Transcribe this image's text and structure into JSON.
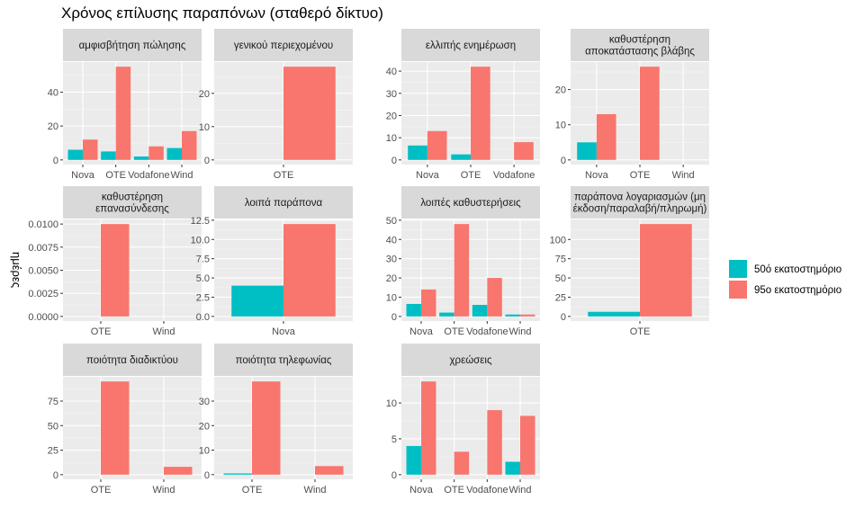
{
  "chart_data": {
    "type": "bar",
    "title": "Χρόνος επίλυσης παραπόνων (σταθερό δίκτυο)",
    "ylabel": "ημέρες",
    "xlabel": "",
    "legend_placement": "right",
    "series_meta": [
      {
        "name": "50ό εκατοστημόριο",
        "color": "#00BFC4"
      },
      {
        "name": "95ο εκατοστημόριο",
        "color": "#F8766D"
      }
    ],
    "facets": [
      {
        "title": [
          "αμφισβήτηση πώλησης"
        ],
        "categories": [
          "Nova",
          "OTE",
          "Vodafone",
          "Wind"
        ],
        "p50": [
          6,
          5,
          2,
          7
        ],
        "p95": [
          12,
          55,
          8,
          17
        ],
        "ylim": [
          -2.75,
          57.75
        ],
        "yticks": [
          0,
          20,
          40
        ]
      },
      {
        "title": [
          "γενικού περιεχομένου"
        ],
        "categories": [
          "OTE"
        ],
        "p50": [
          null
        ],
        "p95": [
          28
        ],
        "ylim": [
          -1.4,
          29.4
        ],
        "yticks": [
          0,
          10,
          20
        ]
      },
      {
        "title": [
          "ελλιπής ενημέρωση"
        ],
        "categories": [
          "Nova",
          "OTE",
          "Vodafone"
        ],
        "p50": [
          6.5,
          2.5,
          null
        ],
        "p95": [
          13,
          42,
          8
        ],
        "ylim": [
          -2.1,
          44.1
        ],
        "yticks": [
          0,
          10,
          20,
          30,
          40
        ]
      },
      {
        "title": [
          "καθυστέρηση",
          "αποκατάστασης βλάβης"
        ],
        "categories": [
          "Nova",
          "OTE",
          "Wind"
        ],
        "p50": [
          5,
          null,
          null
        ],
        "p95": [
          13,
          26.5,
          null
        ],
        "ylim": [
          -1.325,
          27.825
        ],
        "yticks": [
          0,
          10,
          20
        ]
      },
      {
        "title": [
          "καθυστέρηση",
          "επανασύνδεσης"
        ],
        "categories": [
          "OTE",
          "Wind"
        ],
        "p50": [
          null,
          null
        ],
        "p95": [
          0.01,
          null
        ],
        "ylim": [
          -0.0005,
          0.0105
        ],
        "yticks": [
          0.0,
          0.0025,
          0.005,
          0.0075,
          0.01
        ],
        "ytick_labels": [
          "0.0000",
          "0.0025",
          "0.0050",
          "0.0075",
          "0.0100"
        ]
      },
      {
        "title": [
          "λοιπά παράπονα"
        ],
        "categories": [
          "Nova"
        ],
        "p50": [
          4
        ],
        "p95": [
          12
        ],
        "ylim": [
          -0.6,
          12.6
        ],
        "yticks": [
          0,
          2.5,
          5,
          7.5,
          10,
          12.5
        ],
        "ytick_labels": [
          "0.0",
          "2.5",
          "5.0",
          "7.5",
          "10.0",
          "12.5"
        ]
      },
      {
        "title": [
          "λοιπές καθυστερήσεις"
        ],
        "categories": [
          "Nova",
          "OTE",
          "Vodafone",
          "Wind"
        ],
        "p50": [
          6.5,
          2,
          6,
          1
        ],
        "p95": [
          14,
          48,
          20,
          1
        ],
        "ylim": [
          -2.4,
          50.4
        ],
        "yticks": [
          0,
          10,
          20,
          30,
          40,
          50
        ]
      },
      {
        "title": [
          "παράπονα λογαριασμών (μη",
          "έκδοση/παραλαβή/πληρωμή)"
        ],
        "categories": [
          "OTE"
        ],
        "p50": [
          6
        ],
        "p95": [
          120
        ],
        "ylim": [
          -6,
          126
        ],
        "yticks": [
          0,
          25,
          50,
          75,
          100
        ]
      },
      {
        "title": [
          "ποιότητα διαδικτύου"
        ],
        "categories": [
          "OTE",
          "Wind"
        ],
        "p50": [
          null,
          null
        ],
        "p95": [
          95,
          8
        ],
        "ylim": [
          -4.75,
          99.75
        ],
        "yticks": [
          0,
          25,
          50,
          75
        ]
      },
      {
        "title": [
          "ποιότητα τηλεφωνίας"
        ],
        "categories": [
          "OTE",
          "Wind"
        ],
        "p50": [
          0.5,
          null
        ],
        "p95": [
          38,
          3.5
        ],
        "ylim": [
          -1.9,
          39.9
        ],
        "yticks": [
          0,
          10,
          20,
          30
        ]
      },
      {
        "title": [
          "χρεώσεις"
        ],
        "categories": [
          "Nova",
          "OTE",
          "Vodafone",
          "Wind"
        ],
        "p50": [
          4,
          null,
          null,
          1.8
        ],
        "p95": [
          13,
          3.2,
          9,
          8.2
        ],
        "ylim": [
          -0.65,
          13.65
        ],
        "yticks": [
          0,
          5,
          10
        ]
      }
    ]
  }
}
